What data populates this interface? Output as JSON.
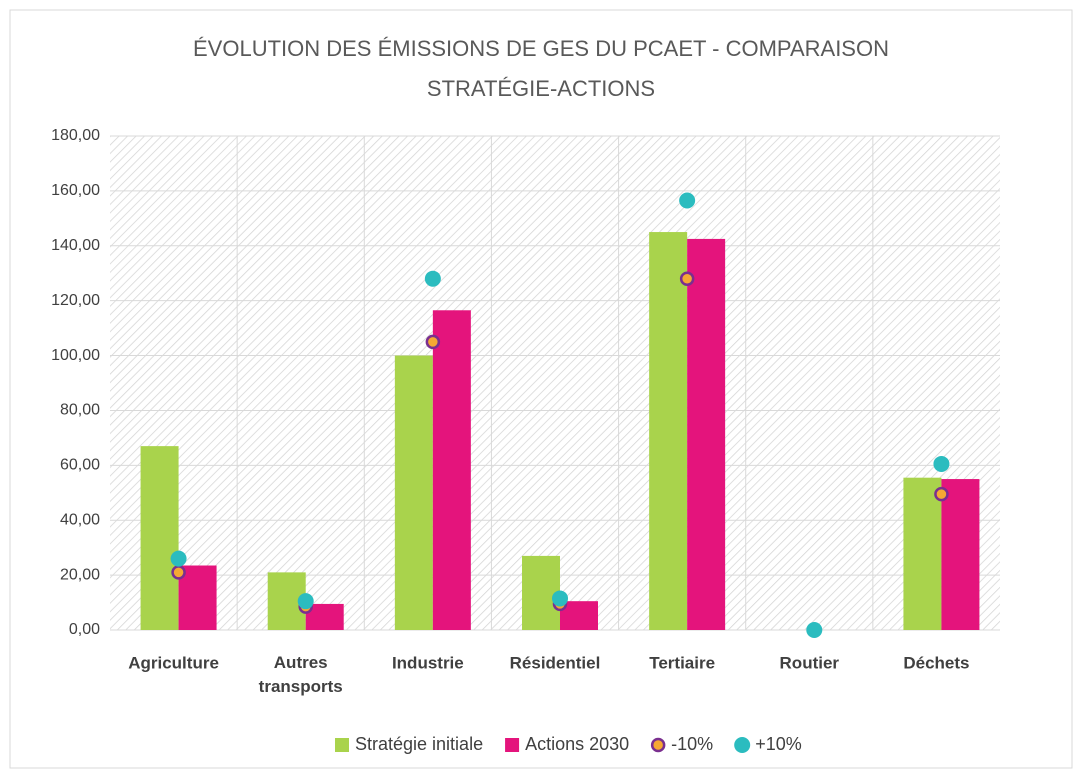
{
  "chart_data": {
    "type": "bar",
    "title": [
      "ÉVOLUTION DES ÉMISSIONS DE GES DU PCAET - COMPARAISON",
      "STRATÉGIE-ACTIONS"
    ],
    "categories": [
      "Agriculture",
      "Autres transports",
      "Industrie",
      "Résidentiel",
      "Tertiaire",
      "Routier",
      "Déchets"
    ],
    "series": [
      {
        "name": "Stratégie initiale",
        "type": "bar",
        "color": "#a9d34c",
        "values": [
          67,
          21,
          100,
          27,
          145,
          0,
          55.5
        ]
      },
      {
        "name": "Actions 2030",
        "type": "bar",
        "color": "#e4147c",
        "values": [
          23.5,
          9.5,
          116.5,
          10.5,
          142.5,
          0,
          55
        ]
      },
      {
        "name": "-10%",
        "type": "scatter",
        "color": "#f6a833",
        "edgecolor": "#7a2f8f",
        "values": [
          21,
          8.5,
          105,
          9.5,
          128,
          0,
          49.5
        ]
      },
      {
        "name": "+10%",
        "type": "scatter",
        "color": "#2bbcbf",
        "values": [
          26,
          10.5,
          128,
          11.5,
          156.5,
          0,
          60.5
        ]
      }
    ],
    "ylim": [
      0,
      180
    ],
    "yticks": [
      {
        "value": 0,
        "label": "0,00"
      },
      {
        "value": 20,
        "label": "20,00"
      },
      {
        "value": 40,
        "label": "40,00"
      },
      {
        "value": 60,
        "label": "60,00"
      },
      {
        "value": 80,
        "label": "80,00"
      },
      {
        "value": 100,
        "label": "100,00"
      },
      {
        "value": 120,
        "label": "120,00"
      },
      {
        "value": 140,
        "label": "140,00"
      },
      {
        "value": 160,
        "label": "160,00"
      },
      {
        "value": 180,
        "label": "180,00"
      }
    ],
    "grid": true,
    "legend": "bottom"
  }
}
